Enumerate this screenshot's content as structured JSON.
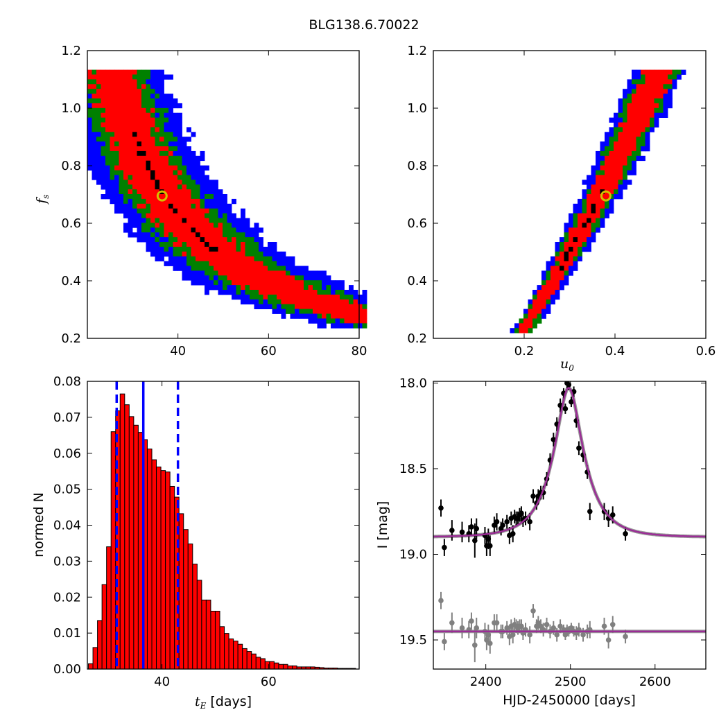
{
  "title": "BLG138.6.70022",
  "colors": {
    "blue": "#0000ff",
    "green": "#008000",
    "red": "#ff0000",
    "black": "#000000",
    "marker": "#d4c000",
    "model": "#9b2c96",
    "grey": "#808080"
  },
  "chart_data": [
    {
      "id": "fs-vs-tE",
      "type": "heatmap",
      "xlabel": "",
      "ylabel": "f_s",
      "ylabel_main": "f",
      "ylabel_sub": "s",
      "xlim": [
        20,
        80
      ],
      "ylim": [
        0.2,
        1.2
      ],
      "xticks": [
        40,
        60,
        80
      ],
      "yticks": [
        0.2,
        0.4,
        0.6,
        0.8,
        1.0,
        1.2
      ],
      "ytick_labels": [
        "0.2",
        "0.4",
        "0.6",
        "0.8",
        "1.0",
        "1.2"
      ],
      "best_fit": {
        "x": 36.5,
        "y": 0.695
      }
    },
    {
      "id": "fs-vs-u0",
      "type": "heatmap",
      "xlabel": "u_0",
      "xlabel_main": "u",
      "xlabel_sub": "0",
      "ylabel": "",
      "xlim": [
        0.0,
        0.6
      ],
      "ylim": [
        0.2,
        1.2
      ],
      "xticks": [
        0.2,
        0.4,
        0.6
      ],
      "xtick_labels": [
        "0.2",
        "0.4",
        "0.6"
      ],
      "yticks": [
        0.2,
        0.4,
        0.6,
        0.8,
        1.0,
        1.2
      ],
      "ytick_labels": [
        "0.2",
        "0.4",
        "0.6",
        "0.8",
        "1.0",
        "1.2"
      ],
      "best_fit": {
        "x": 0.38,
        "y": 0.695
      }
    },
    {
      "id": "tE-histogram",
      "type": "bar",
      "xlabel_main": "t",
      "xlabel_sub": "E",
      "xlabel_rest": " [days]",
      "ylabel": "normed N",
      "xlim": [
        26,
        77
      ],
      "ylim": [
        0,
        0.08
      ],
      "xticks": [
        40,
        60
      ],
      "yticks": [
        0.0,
        0.01,
        0.02,
        0.03,
        0.04,
        0.05,
        0.06,
        0.07,
        0.08
      ],
      "ytick_labels": [
        "0.00",
        "0.01",
        "0.02",
        "0.03",
        "0.04",
        "0.05",
        "0.06",
        "0.07",
        "0.08"
      ],
      "bin_width": 0.85,
      "bin_start": 26.2,
      "values": [
        0.0015,
        0.006,
        0.0135,
        0.0235,
        0.034,
        0.066,
        0.0718,
        0.0765,
        0.0735,
        0.0702,
        0.0678,
        0.0658,
        0.0638,
        0.0612,
        0.0582,
        0.0562,
        0.0552,
        0.0548,
        0.0508,
        0.0478,
        0.0432,
        0.0388,
        0.0348,
        0.0292,
        0.0247,
        0.0192,
        0.0192,
        0.0161,
        0.0161,
        0.0118,
        0.0099,
        0.0084,
        0.0078,
        0.0069,
        0.0057,
        0.0049,
        0.0042,
        0.0033,
        0.0029,
        0.0021,
        0.0021,
        0.0017,
        0.0013,
        0.0013,
        0.0009,
        0.0009,
        0.0006,
        0.0006,
        0.0006,
        0.0006,
        0.0005,
        0.0004,
        0.0003,
        0.0003,
        0.0003,
        0.0002,
        0.0002,
        0.0002,
        0.0002
      ],
      "median": 36.5,
      "bounds": [
        31.5,
        43.0
      ]
    },
    {
      "id": "lightcurve",
      "type": "scatter",
      "xlabel": "HJD-2450000 [days]",
      "ylabel": "I [mag]",
      "xlim": [
        2338,
        2660
      ],
      "ylim": [
        19.67,
        17.99
      ],
      "xticks": [
        2400,
        2500,
        2600
      ],
      "yticks": [
        18.0,
        18.5,
        19.0,
        19.5
      ],
      "ytick_labels": [
        "18.0",
        "18.5",
        "19.0",
        "19.5"
      ],
      "model": {
        "t0": 2498,
        "tE": 36.5,
        "u0": 0.38,
        "fs": 0.695,
        "baseline": 18.9
      },
      "residual_offset": 19.45,
      "series": [
        {
          "name": "",
          "x": [
            2347,
            2351,
            2360,
            2372,
            2380,
            2383,
            2387,
            2389,
            2399,
            2401,
            2403,
            2405,
            2410,
            2413,
            2418,
            2420,
            2425,
            2428,
            2430,
            2432,
            2434,
            2436,
            2438,
            2440,
            2442,
            2444,
            2447,
            2452,
            2456,
            2460,
            2462,
            2465,
            2468,
            2472,
            2476,
            2480,
            2484,
            2488,
            2492,
            2494,
            2496,
            2498,
            2501,
            2504,
            2507,
            2510,
            2515,
            2520,
            2523,
            2540,
            2545,
            2550,
            2565
          ],
          "y": [
            18.73,
            18.96,
            18.86,
            18.87,
            18.88,
            18.84,
            18.92,
            18.85,
            18.89,
            18.95,
            18.91,
            18.95,
            18.83,
            18.81,
            18.85,
            18.83,
            18.81,
            18.89,
            18.79,
            18.88,
            18.78,
            18.79,
            18.79,
            18.77,
            18.76,
            18.8,
            18.79,
            18.81,
            18.66,
            18.7,
            18.66,
            18.64,
            18.64,
            18.56,
            18.45,
            18.33,
            18.24,
            18.13,
            18.06,
            18.15,
            18.0,
            18.01,
            18.11,
            18.05,
            18.22,
            18.38,
            18.42,
            18.52,
            18.75,
            18.75,
            18.79,
            18.77,
            18.88
          ],
          "err": [
            0.05,
            0.05,
            0.06,
            0.06,
            0.05,
            0.05,
            0.1,
            0.06,
            0.05,
            0.06,
            0.06,
            0.06,
            0.05,
            0.05,
            0.04,
            0.04,
            0.04,
            0.05,
            0.04,
            0.05,
            0.04,
            0.04,
            0.04,
            0.04,
            0.04,
            0.04,
            0.04,
            0.05,
            0.04,
            0.04,
            0.04,
            0.04,
            0.04,
            0.04,
            0.04,
            0.04,
            0.04,
            0.04,
            0.03,
            0.03,
            0.03,
            0.03,
            0.03,
            0.03,
            0.04,
            0.04,
            0.04,
            0.04,
            0.05,
            0.05,
            0.05,
            0.05,
            0.04
          ]
        },
        {
          "name": "",
          "x": [
            2347,
            2351,
            2360,
            2372,
            2380,
            2383,
            2387,
            2389,
            2399,
            2401,
            2403,
            2405,
            2410,
            2413,
            2418,
            2420,
            2425,
            2428,
            2430,
            2432,
            2434,
            2436,
            2438,
            2440,
            2442,
            2444,
            2447,
            2452,
            2456,
            2460,
            2462,
            2465,
            2468,
            2472,
            2476,
            2480,
            2484,
            2488,
            2492,
            2494,
            2496,
            2498,
            2501,
            2504,
            2507,
            2510,
            2515,
            2520,
            2523,
            2540,
            2545,
            2550,
            2565
          ],
          "y": [
            19.27,
            19.51,
            19.4,
            19.43,
            19.44,
            19.39,
            19.53,
            19.43,
            19.45,
            19.5,
            19.47,
            19.52,
            19.4,
            19.4,
            19.45,
            19.45,
            19.43,
            19.48,
            19.42,
            19.47,
            19.41,
            19.42,
            19.43,
            19.42,
            19.42,
            19.46,
            19.44,
            19.47,
            19.33,
            19.42,
            19.4,
            19.42,
            19.44,
            19.41,
            19.45,
            19.43,
            19.47,
            19.42,
            19.44,
            19.47,
            19.44,
            19.45,
            19.43,
            19.45,
            19.46,
            19.44,
            19.47,
            19.45,
            19.44,
            19.42,
            19.5,
            19.41,
            19.48
          ],
          "err": [
            0.05,
            0.05,
            0.06,
            0.06,
            0.05,
            0.05,
            0.1,
            0.06,
            0.05,
            0.06,
            0.06,
            0.06,
            0.05,
            0.05,
            0.04,
            0.04,
            0.04,
            0.05,
            0.04,
            0.05,
            0.04,
            0.04,
            0.04,
            0.04,
            0.04,
            0.04,
            0.04,
            0.05,
            0.04,
            0.04,
            0.04,
            0.04,
            0.04,
            0.04,
            0.04,
            0.04,
            0.04,
            0.04,
            0.03,
            0.03,
            0.03,
            0.03,
            0.03,
            0.03,
            0.04,
            0.04,
            0.04,
            0.04,
            0.05,
            0.05,
            0.05,
            0.05,
            0.04
          ]
        }
      ]
    }
  ]
}
